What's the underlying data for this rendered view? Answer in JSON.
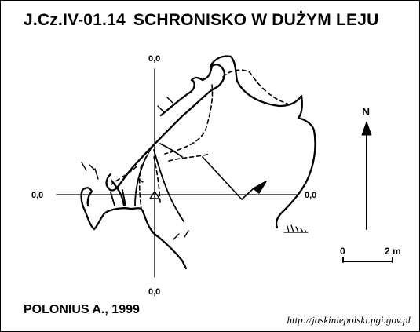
{
  "title": {
    "code": "J.Cz.IV-01.14",
    "name": "SCHRONISKO W DUŻYM LEJU"
  },
  "axis_labels": {
    "top": "0,0",
    "bottom": "0,0",
    "left": "0,0",
    "right": "0,0"
  },
  "north": {
    "label": "N",
    "icon": "north-arrow-icon"
  },
  "scale": {
    "start": "0",
    "end": "2 m"
  },
  "author": "POLONIUS A., 1999",
  "source_url": "http://jaskiniepolski.pgi.gov.pl",
  "colors": {
    "ink": "#000000",
    "paper": "#ffffff"
  }
}
